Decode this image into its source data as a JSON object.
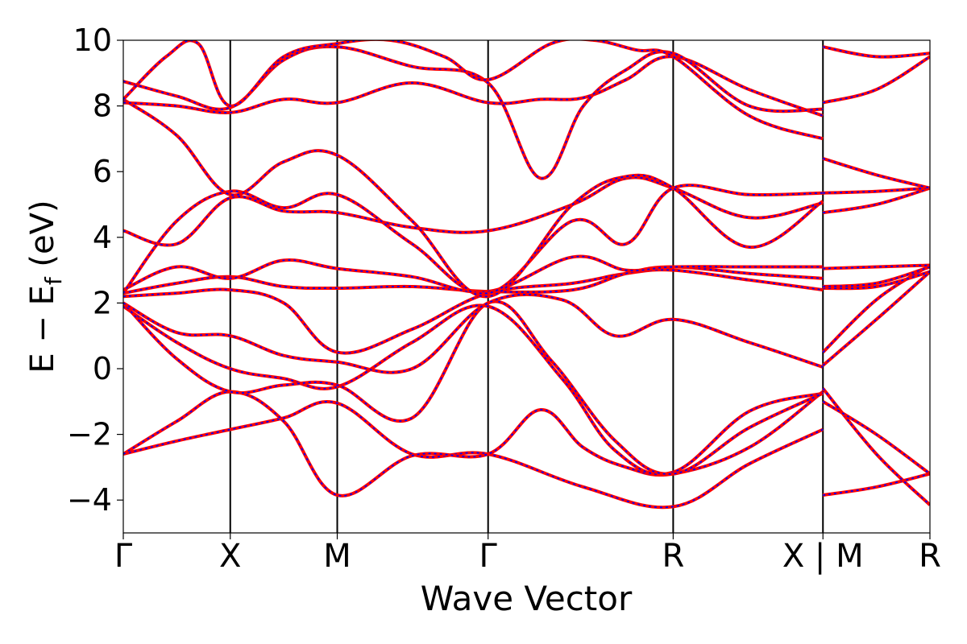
{
  "chart_data": {
    "type": "line",
    "title": "",
    "xlabel": "Wave Vector",
    "ylabel": "E − E",
    "ylabel_sub": "f",
    "ylabel_unit": " (eV)",
    "ylim": [
      -5,
      10
    ],
    "yticks": [
      -4,
      -2,
      0,
      2,
      4,
      6,
      8,
      10
    ],
    "ytick_labels": [
      "−4",
      "−2",
      "0",
      "2",
      "4",
      "6",
      "8",
      "10"
    ],
    "grid": false,
    "legend": "none",
    "k_path": {
      "nodes": [
        0.0,
        1.0,
        2.0,
        3.41,
        5.14,
        6.54,
        7.54
      ],
      "labels": [
        "Γ",
        "X",
        "M",
        "Γ",
        "R",
        "X | M",
        "R"
      ],
      "segment_breaks": [
        6.54
      ]
    },
    "colors": {
      "solid": "#ff0000",
      "dashed": "#0000ff",
      "axis": "#000000"
    },
    "series": [
      {
        "name": "",
        "x": [
          0,
          0.5,
          1,
          1.5,
          2,
          2.7,
          3.41,
          4.3,
          5.14,
          5.85,
          6.54
        ],
        "y": [
          -2.6,
          -2.2,
          -1.85,
          -1.5,
          -1.05,
          -2.6,
          -2.6,
          -3.6,
          -4.2,
          -2.9,
          -1.85
        ]
      },
      {
        "name": "",
        "x": [
          6.54,
          7.04,
          7.54
        ],
        "y": [
          -3.85,
          -3.6,
          -3.2
        ]
      },
      {
        "name": "",
        "x": [
          0,
          0.5,
          1,
          1.5,
          2,
          2.7,
          3.41,
          3.9,
          4.3,
          4.7,
          5.14,
          5.85,
          6.54
        ],
        "y": [
          -2.6,
          -1.6,
          -0.7,
          -1.6,
          -3.85,
          -2.65,
          -2.6,
          -1.25,
          -2.4,
          -3.0,
          -3.2,
          -2.4,
          -0.7
        ]
      },
      {
        "name": "",
        "x": [
          6.54,
          7.04,
          7.54
        ],
        "y": [
          -0.6,
          -2.6,
          -4.15
        ]
      },
      {
        "name": "",
        "x": [
          0,
          0.5,
          1,
          1.5,
          2,
          2.7,
          3.41,
          4.1,
          4.6,
          5.14,
          5.85,
          6.54
        ],
        "y": [
          1.9,
          0.8,
          0.0,
          -0.3,
          -0.55,
          0.8,
          1.9,
          -0.3,
          -2.5,
          -3.15,
          -1.3,
          -0.75
        ]
      },
      {
        "name": "",
        "x": [
          6.54,
          7.04,
          7.54
        ],
        "y": [
          -1.0,
          -2.0,
          -3.2
        ]
      },
      {
        "name": "",
        "x": [
          0,
          0.5,
          1,
          1.5,
          2,
          2.7,
          3.41,
          4.0,
          4.6,
          5.14,
          5.85,
          6.54
        ],
        "y": [
          2.0,
          0.3,
          -0.7,
          -0.5,
          -0.5,
          -1.5,
          2.0,
          0.25,
          -2.2,
          -3.2,
          -1.8,
          -0.75
        ]
      },
      {
        "name": "",
        "x": [
          6.54,
          7.04,
          7.54
        ],
        "y": [
          0.1,
          1.5,
          2.95
        ]
      },
      {
        "name": "",
        "x": [
          0,
          0.5,
          1,
          1.5,
          2,
          2.7,
          3.41,
          4.1,
          4.6,
          5.14,
          5.85,
          6.54
        ],
        "y": [
          2.0,
          1.1,
          1.0,
          0.4,
          0.2,
          0.0,
          2.0,
          2.1,
          1.0,
          1.5,
          0.8,
          0.05
        ]
      },
      {
        "name": "",
        "x": [
          6.54,
          7.04,
          7.54
        ],
        "y": [
          0.5,
          2.1,
          3.15
        ]
      },
      {
        "name": "",
        "x": [
          0,
          0.5,
          1,
          1.5,
          2,
          2.7,
          3.41,
          4.2,
          4.7,
          5.14,
          5.85,
          6.54
        ],
        "y": [
          2.2,
          2.3,
          2.4,
          2.0,
          0.5,
          1.2,
          2.3,
          2.6,
          2.9,
          3.0,
          2.7,
          2.4
        ]
      },
      {
        "name": "",
        "x": [
          6.54,
          7.04,
          7.54
        ],
        "y": [
          2.45,
          2.5,
          2.95
        ]
      },
      {
        "name": "",
        "x": [
          0,
          0.5,
          1,
          1.5,
          2,
          2.7,
          3.41,
          4.2,
          4.7,
          5.14,
          5.85,
          6.54
        ],
        "y": [
          2.3,
          2.6,
          2.8,
          2.5,
          2.45,
          2.5,
          2.35,
          2.4,
          2.9,
          3.1,
          2.9,
          2.75
        ]
      },
      {
        "name": "",
        "x": [
          6.54,
          7.04,
          7.54
        ],
        "y": [
          2.5,
          2.6,
          3.1
        ]
      },
      {
        "name": "",
        "x": [
          0,
          0.5,
          1,
          1.5,
          2,
          2.7,
          3.41,
          4.2,
          4.7,
          5.14,
          5.85,
          6.54
        ],
        "y": [
          2.4,
          3.1,
          2.75,
          3.3,
          3.05,
          2.8,
          2.35,
          3.4,
          3.0,
          3.1,
          3.1,
          3.1
        ]
      },
      {
        "name": "",
        "x": [
          6.54,
          7.04,
          7.54
        ],
        "y": [
          3.05,
          3.1,
          3.15
        ]
      },
      {
        "name": "",
        "x": [
          0,
          0.5,
          1,
          1.5,
          2,
          2.7,
          3.41,
          4.2,
          4.7,
          5.14,
          5.85,
          6.54
        ],
        "y": [
          4.2,
          3.8,
          5.2,
          4.8,
          4.75,
          4.3,
          4.2,
          5.0,
          5.8,
          5.5,
          4.6,
          5.05
        ]
      },
      {
        "name": "",
        "x": [
          6.54,
          7.04,
          7.54
        ],
        "y": [
          4.75,
          5.0,
          5.5
        ]
      },
      {
        "name": "",
        "x": [
          0,
          0.5,
          1,
          1.5,
          2,
          2.7,
          3.41,
          4.2,
          4.7,
          5.14,
          5.85,
          6.54
        ],
        "y": [
          2.3,
          4.5,
          5.4,
          4.9,
          5.3,
          3.8,
          2.3,
          4.5,
          3.8,
          5.5,
          5.3,
          5.35
        ]
      },
      {
        "name": "",
        "x": [
          6.54,
          7.04,
          7.54
        ],
        "y": [
          5.35,
          5.4,
          5.5
        ]
      },
      {
        "name": "",
        "x": [
          0,
          0.5,
          1,
          1.5,
          2,
          2.7,
          3.41,
          4.2,
          4.7,
          5.14,
          5.85,
          6.54
        ],
        "y": [
          8.2,
          7.1,
          5.3,
          6.3,
          6.5,
          4.5,
          2.2,
          5.0,
          5.85,
          5.5,
          3.7,
          5.1
        ]
      },
      {
        "name": "",
        "x": [
          6.54,
          7.04,
          7.54
        ],
        "y": [
          6.4,
          5.9,
          5.5
        ]
      },
      {
        "name": "",
        "x": [
          0,
          0.5,
          1,
          1.5,
          2,
          2.7,
          3.41,
          3.9,
          4.3,
          4.7,
          5.14,
          5.85,
          6.54
        ],
        "y": [
          8.1,
          8.0,
          7.8,
          8.2,
          8.1,
          8.7,
          8.1,
          8.2,
          8.25,
          8.8,
          9.5,
          8.5,
          7.7
        ]
      },
      {
        "name": "",
        "x": [
          6.54,
          7.04,
          7.54
        ],
        "y": [
          8.1,
          8.5,
          9.5
        ]
      },
      {
        "name": "",
        "x": [
          0,
          0.5,
          1,
          1.5,
          2,
          2.7,
          3.41,
          3.9,
          4.3,
          4.7,
          5.14,
          5.85,
          6.54
        ],
        "y": [
          8.75,
          8.3,
          7.95,
          9.4,
          9.8,
          9.2,
          8.7,
          5.8,
          8.0,
          9.1,
          9.6,
          8.0,
          7.9
        ]
      },
      {
        "name": "",
        "x": [
          6.54,
          7.04,
          7.54
        ],
        "y": [
          9.8,
          9.5,
          9.6
        ]
      },
      {
        "name": "",
        "x": [
          0,
          0.4,
          0.7,
          1.0,
          1.5,
          2.0,
          2.5,
          3.0,
          3.41,
          4.0,
          4.4,
          4.8,
          5.14,
          5.85,
          6.54
        ],
        "y": [
          8.2,
          9.5,
          9.9,
          8.0,
          9.5,
          9.9,
          10.0,
          9.5,
          8.8,
          9.9,
          10.0,
          9.7,
          9.5,
          7.7,
          7.0
        ]
      }
    ]
  }
}
